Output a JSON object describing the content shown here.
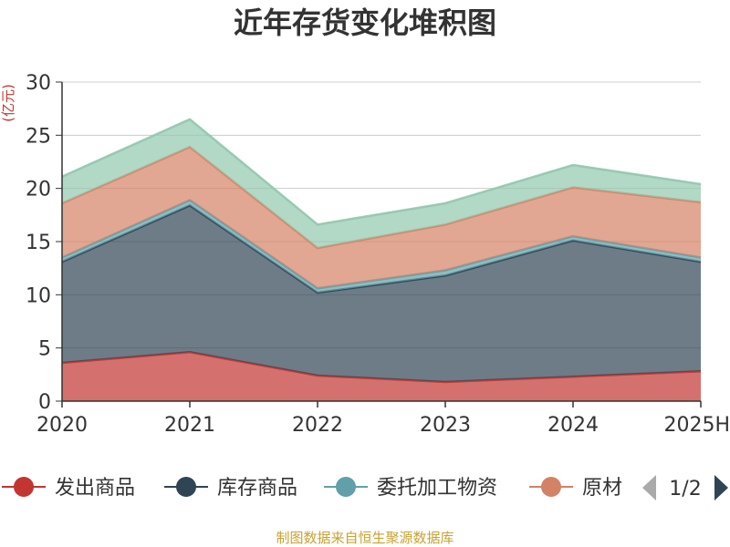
{
  "chart_data": {
    "type": "area",
    "title": "近年存货变化堆积图",
    "unit_label": "(亿元)",
    "ylim": [
      0,
      30
    ],
    "y_ticks": [
      0,
      5,
      10,
      15,
      20,
      25,
      30
    ],
    "categories": [
      "2020",
      "2021",
      "2022",
      "2023",
      "2024",
      "2025H"
    ],
    "stacked": true,
    "grid": true,
    "series": [
      {
        "name": "发出商品",
        "color": "#c23531",
        "values": [
          3.6,
          4.6,
          2.4,
          1.8,
          2.3,
          2.8
        ]
      },
      {
        "name": "库存商品",
        "color": "#2f4554",
        "values": [
          9.5,
          13.8,
          7.8,
          10.0,
          12.8,
          10.3
        ]
      },
      {
        "name": "委托加工物资",
        "color": "#61a0a8",
        "values": [
          0.4,
          0.5,
          0.4,
          0.5,
          0.4,
          0.4
        ]
      },
      {
        "name": "原材料",
        "color": "#d48265",
        "values": [
          5.1,
          5.0,
          3.8,
          4.3,
          4.6,
          5.2
        ]
      },
      {
        "name": "",
        "color": "#91c7ae",
        "values": [
          2.5,
          2.6,
          2.2,
          2.0,
          2.1,
          1.7
        ]
      }
    ],
    "legend": {
      "placement": "bottom",
      "visible_items": [
        "发出商品",
        "库存商品",
        "委托加工物资",
        "原材"
      ],
      "page": "1/2"
    },
    "source": "制图数据来自恒生聚源数据库"
  }
}
